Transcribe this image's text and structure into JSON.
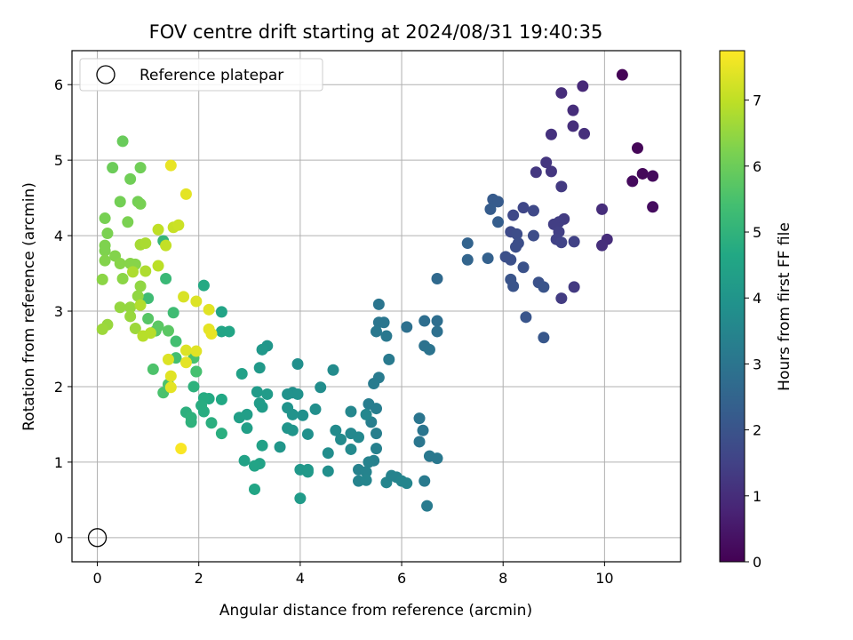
{
  "chart_data": {
    "type": "scatter",
    "title": "FOV centre drift starting at 2024/08/31 19:40:35",
    "xlabel": "Angular distance from reference (arcmin)",
    "ylabel": "Rotation from reference (arcmin)",
    "xlim": [
      -0.5,
      11.5
    ],
    "ylim": [
      -0.32,
      6.45
    ],
    "xticks": [
      0,
      2,
      4,
      6,
      8,
      10
    ],
    "yticks": [
      0,
      1,
      2,
      3,
      4,
      5,
      6
    ],
    "grid": true,
    "legend": {
      "position": "top-left",
      "entries": [
        "Reference platepar"
      ]
    },
    "reference_point": {
      "x": 0,
      "y": 0
    },
    "colorbar": {
      "label": "Hours from first FF file",
      "range": [
        0,
        7.75
      ],
      "ticks": [
        0,
        1,
        2,
        3,
        4,
        5,
        6,
        7
      ],
      "colormap": "viridis"
    },
    "points": [
      {
        "x": 10.35,
        "y": 6.13,
        "h": 0.05
      },
      {
        "x": 10.65,
        "y": 5.16,
        "h": 0.1
      },
      {
        "x": 10.75,
        "y": 4.82,
        "h": 0.15
      },
      {
        "x": 10.55,
        "y": 4.72,
        "h": 0.2
      },
      {
        "x": 10.95,
        "y": 4.79,
        "h": 0.22
      },
      {
        "x": 10.95,
        "y": 4.38,
        "h": 0.25
      },
      {
        "x": 9.57,
        "y": 5.98,
        "h": 0.9
      },
      {
        "x": 9.15,
        "y": 5.89,
        "h": 1.0
      },
      {
        "x": 9.38,
        "y": 5.66,
        "h": 1.0
      },
      {
        "x": 9.38,
        "y": 5.45,
        "h": 1.05
      },
      {
        "x": 9.6,
        "y": 5.35,
        "h": 1.05
      },
      {
        "x": 8.95,
        "y": 5.34,
        "h": 1.1
      },
      {
        "x": 8.85,
        "y": 4.97,
        "h": 1.2
      },
      {
        "x": 8.95,
        "y": 4.85,
        "h": 1.2
      },
      {
        "x": 8.65,
        "y": 4.84,
        "h": 1.25
      },
      {
        "x": 9.15,
        "y": 4.65,
        "h": 1.3
      },
      {
        "x": 9.95,
        "y": 4.35,
        "h": 1.0
      },
      {
        "x": 10.05,
        "y": 3.95,
        "h": 1.0
      },
      {
        "x": 9.95,
        "y": 3.87,
        "h": 1.05
      },
      {
        "x": 9.2,
        "y": 4.22,
        "h": 1.35
      },
      {
        "x": 9.1,
        "y": 4.18,
        "h": 1.4
      },
      {
        "x": 9.0,
        "y": 4.15,
        "h": 1.4
      },
      {
        "x": 9.1,
        "y": 4.05,
        "h": 1.45
      },
      {
        "x": 9.05,
        "y": 3.95,
        "h": 1.5
      },
      {
        "x": 9.4,
        "y": 3.92,
        "h": 1.5
      },
      {
        "x": 9.15,
        "y": 3.91,
        "h": 1.55
      },
      {
        "x": 9.4,
        "y": 3.32,
        "h": 1.3
      },
      {
        "x": 9.15,
        "y": 3.17,
        "h": 1.35
      },
      {
        "x": 8.4,
        "y": 4.37,
        "h": 1.65
      },
      {
        "x": 8.6,
        "y": 4.33,
        "h": 1.7
      },
      {
        "x": 8.2,
        "y": 4.27,
        "h": 1.7
      },
      {
        "x": 8.15,
        "y": 4.05,
        "h": 1.75
      },
      {
        "x": 8.27,
        "y": 4.02,
        "h": 1.8
      },
      {
        "x": 8.6,
        "y": 4.0,
        "h": 1.8
      },
      {
        "x": 8.3,
        "y": 3.9,
        "h": 1.85
      },
      {
        "x": 8.25,
        "y": 3.85,
        "h": 1.85
      },
      {
        "x": 8.05,
        "y": 3.72,
        "h": 1.9
      },
      {
        "x": 8.15,
        "y": 3.68,
        "h": 1.9
      },
      {
        "x": 8.4,
        "y": 3.58,
        "h": 1.95
      },
      {
        "x": 8.15,
        "y": 3.42,
        "h": 2.0
      },
      {
        "x": 8.2,
        "y": 3.33,
        "h": 2.0
      },
      {
        "x": 8.7,
        "y": 3.38,
        "h": 1.95
      },
      {
        "x": 8.8,
        "y": 3.32,
        "h": 2.0
      },
      {
        "x": 8.45,
        "y": 2.92,
        "h": 2.05
      },
      {
        "x": 8.8,
        "y": 2.65,
        "h": 2.1
      },
      {
        "x": 7.8,
        "y": 4.48,
        "h": 2.2
      },
      {
        "x": 7.9,
        "y": 4.45,
        "h": 2.2
      },
      {
        "x": 7.75,
        "y": 4.35,
        "h": 2.25
      },
      {
        "x": 7.9,
        "y": 4.18,
        "h": 2.3
      },
      {
        "x": 7.3,
        "y": 3.9,
        "h": 2.45
      },
      {
        "x": 7.3,
        "y": 3.68,
        "h": 2.5
      },
      {
        "x": 7.7,
        "y": 3.7,
        "h": 2.4
      },
      {
        "x": 6.7,
        "y": 3.43,
        "h": 2.65
      },
      {
        "x": 6.45,
        "y": 2.87,
        "h": 2.8
      },
      {
        "x": 6.7,
        "y": 2.87,
        "h": 2.8
      },
      {
        "x": 6.7,
        "y": 2.73,
        "h": 2.85
      },
      {
        "x": 6.1,
        "y": 2.79,
        "h": 2.85
      },
      {
        "x": 6.45,
        "y": 2.54,
        "h": 2.9
      },
      {
        "x": 6.55,
        "y": 2.49,
        "h": 2.95
      },
      {
        "x": 6.35,
        "y": 1.58,
        "h": 3.0
      },
      {
        "x": 6.42,
        "y": 1.42,
        "h": 3.0
      },
      {
        "x": 6.35,
        "y": 1.27,
        "h": 3.05
      },
      {
        "x": 6.55,
        "y": 1.08,
        "h": 3.1
      },
      {
        "x": 6.7,
        "y": 1.05,
        "h": 3.1
      },
      {
        "x": 6.45,
        "y": 0.75,
        "h": 3.15
      },
      {
        "x": 6.5,
        "y": 0.42,
        "h": 3.2
      },
      {
        "x": 5.55,
        "y": 3.09,
        "h": 3.0
      },
      {
        "x": 5.55,
        "y": 2.85,
        "h": 3.05
      },
      {
        "x": 5.65,
        "y": 2.85,
        "h": 3.05
      },
      {
        "x": 5.5,
        "y": 2.73,
        "h": 3.1
      },
      {
        "x": 5.7,
        "y": 2.67,
        "h": 3.1
      },
      {
        "x": 5.75,
        "y": 2.36,
        "h": 3.15
      },
      {
        "x": 5.55,
        "y": 2.12,
        "h": 3.2
      },
      {
        "x": 5.45,
        "y": 2.04,
        "h": 3.2
      },
      {
        "x": 5.35,
        "y": 1.77,
        "h": 3.25
      },
      {
        "x": 5.5,
        "y": 1.71,
        "h": 3.25
      },
      {
        "x": 5.4,
        "y": 1.53,
        "h": 3.3
      },
      {
        "x": 5.5,
        "y": 1.38,
        "h": 3.3
      },
      {
        "x": 5.5,
        "y": 1.18,
        "h": 3.35
      },
      {
        "x": 5.45,
        "y": 1.02,
        "h": 3.35
      },
      {
        "x": 5.35,
        "y": 1.0,
        "h": 3.4
      },
      {
        "x": 5.15,
        "y": 0.9,
        "h": 3.4
      },
      {
        "x": 5.3,
        "y": 0.87,
        "h": 3.45
      },
      {
        "x": 5.15,
        "y": 0.75,
        "h": 3.45
      },
      {
        "x": 5.3,
        "y": 0.76,
        "h": 3.5
      },
      {
        "x": 5.7,
        "y": 0.73,
        "h": 3.5
      },
      {
        "x": 5.8,
        "y": 0.82,
        "h": 3.45
      },
      {
        "x": 5.9,
        "y": 0.8,
        "h": 3.45
      },
      {
        "x": 6.0,
        "y": 0.75,
        "h": 3.5
      },
      {
        "x": 6.1,
        "y": 0.72,
        "h": 3.5
      },
      {
        "x": 5.0,
        "y": 1.67,
        "h": 3.55
      },
      {
        "x": 5.3,
        "y": 1.63,
        "h": 3.55
      },
      {
        "x": 5.0,
        "y": 1.38,
        "h": 3.6
      },
      {
        "x": 5.15,
        "y": 1.33,
        "h": 3.6
      },
      {
        "x": 5.0,
        "y": 1.17,
        "h": 3.65
      },
      {
        "x": 4.7,
        "y": 1.42,
        "h": 3.7
      },
      {
        "x": 4.8,
        "y": 1.3,
        "h": 3.7
      },
      {
        "x": 4.55,
        "y": 1.12,
        "h": 3.75
      },
      {
        "x": 4.55,
        "y": 0.88,
        "h": 3.8
      },
      {
        "x": 4.65,
        "y": 2.22,
        "h": 3.7
      },
      {
        "x": 4.4,
        "y": 1.99,
        "h": 3.75
      },
      {
        "x": 4.3,
        "y": 1.7,
        "h": 3.8
      },
      {
        "x": 4.15,
        "y": 1.37,
        "h": 3.85
      },
      {
        "x": 4.05,
        "y": 1.62,
        "h": 3.85
      },
      {
        "x": 3.95,
        "y": 2.3,
        "h": 3.8
      },
      {
        "x": 3.85,
        "y": 1.92,
        "h": 3.85
      },
      {
        "x": 3.95,
        "y": 1.9,
        "h": 3.9
      },
      {
        "x": 3.75,
        "y": 1.9,
        "h": 3.9
      },
      {
        "x": 3.75,
        "y": 1.72,
        "h": 3.95
      },
      {
        "x": 3.85,
        "y": 1.63,
        "h": 3.95
      },
      {
        "x": 3.75,
        "y": 1.45,
        "h": 4.0
      },
      {
        "x": 3.85,
        "y": 1.42,
        "h": 4.0
      },
      {
        "x": 3.6,
        "y": 1.2,
        "h": 4.05
      },
      {
        "x": 4.0,
        "y": 0.9,
        "h": 4.1
      },
      {
        "x": 4.15,
        "y": 0.9,
        "h": 4.1
      },
      {
        "x": 4.15,
        "y": 0.87,
        "h": 4.15
      },
      {
        "x": 4.0,
        "y": 0.52,
        "h": 4.2
      },
      {
        "x": 3.35,
        "y": 2.54,
        "h": 4.05
      },
      {
        "x": 3.25,
        "y": 2.49,
        "h": 4.1
      },
      {
        "x": 3.2,
        "y": 2.25,
        "h": 4.15
      },
      {
        "x": 3.15,
        "y": 1.93,
        "h": 4.2
      },
      {
        "x": 3.35,
        "y": 1.9,
        "h": 4.2
      },
      {
        "x": 3.2,
        "y": 1.78,
        "h": 4.25
      },
      {
        "x": 3.25,
        "y": 1.73,
        "h": 4.25
      },
      {
        "x": 2.95,
        "y": 1.63,
        "h": 4.3
      },
      {
        "x": 2.8,
        "y": 1.59,
        "h": 4.35
      },
      {
        "x": 2.95,
        "y": 1.45,
        "h": 4.35
      },
      {
        "x": 3.25,
        "y": 1.22,
        "h": 4.4
      },
      {
        "x": 2.9,
        "y": 1.02,
        "h": 4.45
      },
      {
        "x": 3.2,
        "y": 0.98,
        "h": 4.45
      },
      {
        "x": 3.1,
        "y": 0.95,
        "h": 4.5
      },
      {
        "x": 3.1,
        "y": 0.64,
        "h": 4.55
      },
      {
        "x": 2.85,
        "y": 2.17,
        "h": 4.4
      },
      {
        "x": 2.45,
        "y": 2.99,
        "h": 4.5
      },
      {
        "x": 2.45,
        "y": 2.73,
        "h": 4.55
      },
      {
        "x": 2.6,
        "y": 2.73,
        "h": 4.55
      },
      {
        "x": 2.1,
        "y": 3.34,
        "h": 4.7
      },
      {
        "x": 2.45,
        "y": 1.83,
        "h": 4.65
      },
      {
        "x": 2.2,
        "y": 1.84,
        "h": 4.7
      },
      {
        "x": 2.1,
        "y": 1.85,
        "h": 4.75
      },
      {
        "x": 2.05,
        "y": 1.75,
        "h": 4.8
      },
      {
        "x": 2.1,
        "y": 1.67,
        "h": 4.8
      },
      {
        "x": 2.25,
        "y": 1.52,
        "h": 4.85
      },
      {
        "x": 2.45,
        "y": 1.38,
        "h": 4.85
      },
      {
        "x": 1.75,
        "y": 1.66,
        "h": 4.9
      },
      {
        "x": 1.85,
        "y": 1.59,
        "h": 4.95
      },
      {
        "x": 1.85,
        "y": 1.53,
        "h": 4.95
      },
      {
        "x": 1.95,
        "y": 2.2,
        "h": 4.9
      },
      {
        "x": 1.9,
        "y": 2.0,
        "h": 4.95
      },
      {
        "x": 1.3,
        "y": 3.93,
        "h": 5.1
      },
      {
        "x": 1.35,
        "y": 3.43,
        "h": 5.2
      },
      {
        "x": 1.0,
        "y": 3.17,
        "h": 5.3
      },
      {
        "x": 1.5,
        "y": 2.98,
        "h": 5.3
      },
      {
        "x": 1.55,
        "y": 2.6,
        "h": 5.4
      },
      {
        "x": 1.55,
        "y": 2.38,
        "h": 5.4
      },
      {
        "x": 1.9,
        "y": 2.38,
        "h": 5.5
      },
      {
        "x": 1.95,
        "y": 2.2,
        "h": 5.45
      },
      {
        "x": 1.3,
        "y": 1.92,
        "h": 5.5
      },
      {
        "x": 1.1,
        "y": 2.23,
        "h": 5.55
      },
      {
        "x": 1.4,
        "y": 2.03,
        "h": 5.55
      },
      {
        "x": 1.0,
        "y": 2.9,
        "h": 5.7
      },
      {
        "x": 1.15,
        "y": 2.74,
        "h": 5.7
      },
      {
        "x": 1.2,
        "y": 2.8,
        "h": 5.75
      },
      {
        "x": 1.4,
        "y": 2.74,
        "h": 5.75
      },
      {
        "x": 0.5,
        "y": 5.25,
        "h": 5.95
      },
      {
        "x": 0.3,
        "y": 4.9,
        "h": 6.0
      },
      {
        "x": 0.85,
        "y": 4.9,
        "h": 6.05
      },
      {
        "x": 0.65,
        "y": 4.75,
        "h": 6.05
      },
      {
        "x": 0.45,
        "y": 4.45,
        "h": 6.1
      },
      {
        "x": 0.8,
        "y": 4.45,
        "h": 6.1
      },
      {
        "x": 0.85,
        "y": 4.42,
        "h": 6.15
      },
      {
        "x": 0.15,
        "y": 4.23,
        "h": 6.15
      },
      {
        "x": 0.6,
        "y": 4.18,
        "h": 6.2
      },
      {
        "x": 0.2,
        "y": 4.03,
        "h": 6.2
      },
      {
        "x": 0.15,
        "y": 3.87,
        "h": 6.25
      },
      {
        "x": 0.15,
        "y": 3.8,
        "h": 6.25
      },
      {
        "x": 0.35,
        "y": 3.73,
        "h": 6.3
      },
      {
        "x": 0.15,
        "y": 3.67,
        "h": 6.3
      },
      {
        "x": 0.45,
        "y": 3.63,
        "h": 6.35
      },
      {
        "x": 0.65,
        "y": 3.63,
        "h": 6.35
      },
      {
        "x": 0.75,
        "y": 3.62,
        "h": 6.35
      },
      {
        "x": 0.5,
        "y": 3.43,
        "h": 6.4
      },
      {
        "x": 0.1,
        "y": 3.42,
        "h": 6.4
      },
      {
        "x": 0.85,
        "y": 3.33,
        "h": 6.45
      },
      {
        "x": 0.8,
        "y": 3.2,
        "h": 6.45
      },
      {
        "x": 0.45,
        "y": 3.05,
        "h": 6.5
      },
      {
        "x": 0.65,
        "y": 3.05,
        "h": 6.5
      },
      {
        "x": 0.65,
        "y": 2.93,
        "h": 6.55
      },
      {
        "x": 0.2,
        "y": 2.82,
        "h": 6.55
      },
      {
        "x": 0.1,
        "y": 2.76,
        "h": 6.6
      },
      {
        "x": 0.75,
        "y": 2.77,
        "h": 6.6
      },
      {
        "x": 0.85,
        "y": 3.88,
        "h": 6.7
      },
      {
        "x": 0.95,
        "y": 3.9,
        "h": 6.75
      },
      {
        "x": 0.7,
        "y": 3.52,
        "h": 6.8
      },
      {
        "x": 0.95,
        "y": 3.53,
        "h": 6.8
      },
      {
        "x": 0.85,
        "y": 3.08,
        "h": 6.85
      },
      {
        "x": 0.9,
        "y": 2.67,
        "h": 6.9
      },
      {
        "x": 1.05,
        "y": 2.71,
        "h": 6.9
      },
      {
        "x": 1.2,
        "y": 3.6,
        "h": 6.95
      },
      {
        "x": 1.2,
        "y": 4.08,
        "h": 7.0
      },
      {
        "x": 1.35,
        "y": 3.87,
        "h": 7.05
      },
      {
        "x": 1.5,
        "y": 4.11,
        "h": 7.1
      },
      {
        "x": 1.6,
        "y": 4.14,
        "h": 7.15
      },
      {
        "x": 1.45,
        "y": 4.93,
        "h": 7.5
      },
      {
        "x": 1.75,
        "y": 4.55,
        "h": 7.45
      },
      {
        "x": 1.7,
        "y": 3.19,
        "h": 7.3
      },
      {
        "x": 1.95,
        "y": 3.13,
        "h": 7.35
      },
      {
        "x": 2.2,
        "y": 3.02,
        "h": 7.4
      },
      {
        "x": 2.2,
        "y": 2.76,
        "h": 7.45
      },
      {
        "x": 2.25,
        "y": 2.7,
        "h": 7.5
      },
      {
        "x": 1.75,
        "y": 2.48,
        "h": 7.35
      },
      {
        "x": 1.95,
        "y": 2.47,
        "h": 7.4
      },
      {
        "x": 1.75,
        "y": 2.32,
        "h": 7.45
      },
      {
        "x": 1.4,
        "y": 2.36,
        "h": 7.35
      },
      {
        "x": 1.45,
        "y": 2.14,
        "h": 7.4
      },
      {
        "x": 1.45,
        "y": 1.99,
        "h": 7.45
      },
      {
        "x": 1.65,
        "y": 1.18,
        "h": 7.7
      }
    ]
  }
}
